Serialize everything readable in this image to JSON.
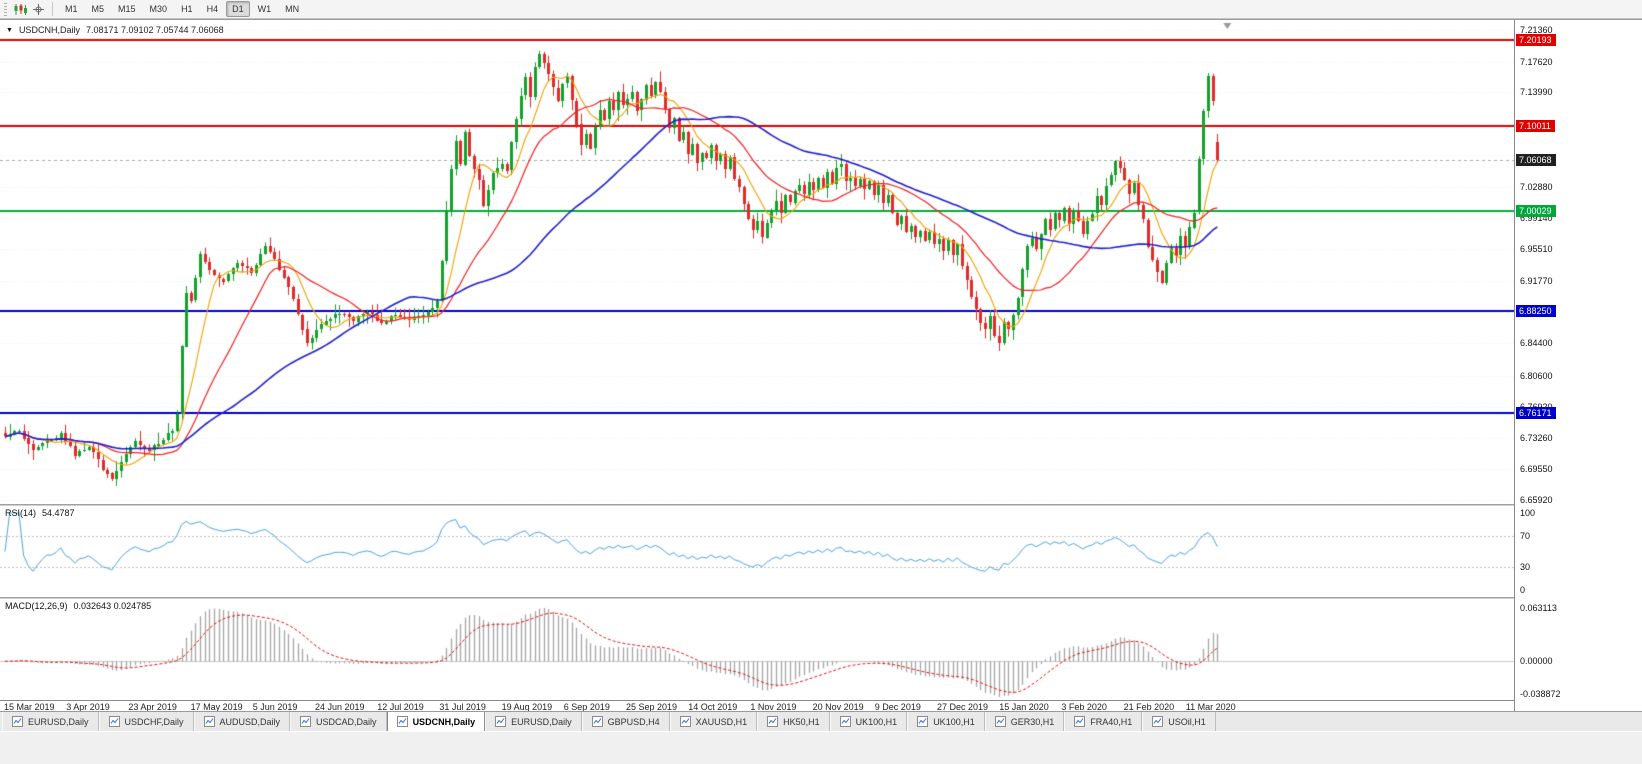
{
  "toolbar": {
    "timeframes": [
      {
        "label": "M1",
        "active": false
      },
      {
        "label": "M5",
        "active": false
      },
      {
        "label": "M15",
        "active": false
      },
      {
        "label": "M30",
        "active": false
      },
      {
        "label": "H1",
        "active": false
      },
      {
        "label": "H4",
        "active": false
      },
      {
        "label": "D1",
        "active": true
      },
      {
        "label": "W1",
        "active": false
      },
      {
        "label": "MN",
        "active": false
      }
    ]
  },
  "chart": {
    "symbol_label": "USDCNH,Daily",
    "ohlc_text": "7.08171 7.09102 7.05744 7.06068",
    "expand_glyph": "▼"
  },
  "indicators": {
    "rsi": {
      "label": "RSI(14)",
      "value": "54.4787",
      "ticks": [
        "100",
        "70",
        "30",
        "0"
      ],
      "levels": [
        70,
        30
      ],
      "color": "#4da3e0"
    },
    "macd": {
      "label": "MACD(12,26,9)",
      "values": "0.032643 0.024785",
      "ticks": [
        "0.063113",
        "0.00000",
        "-0.038872"
      ],
      "hist_color": "#a6a6a6",
      "signal_color": "#e01515"
    }
  },
  "price_axis": {
    "plain_ticks": [
      "7.21360",
      "7.17620",
      "7.13990",
      "7.02880",
      "6.99140",
      "6.95510",
      "6.91770",
      "6.84400",
      "6.80600",
      "6.76920",
      "6.73260",
      "6.69550",
      "6.65920"
    ],
    "tags": [
      {
        "value": "7.20193",
        "bg": "#e00000"
      },
      {
        "value": "7.10011",
        "bg": "#e00000"
      },
      {
        "value": "7.06068",
        "bg": "#202020"
      },
      {
        "value": "7.00029",
        "bg": "#00a83a"
      },
      {
        "value": "6.88250",
        "bg": "#0000cd"
      },
      {
        "value": "6.76171",
        "bg": "#0000cd"
      }
    ]
  },
  "dates": [
    "15 Mar 2019",
    "3 Apr 2019",
    "23 Apr 2019",
    "17 May 2019",
    "5 Jun 2019",
    "24 Jun 2019",
    "12 Jul 2019",
    "31 Jul 2019",
    "19 Aug 2019",
    "6 Sep 2019",
    "25 Sep 2019",
    "14 Oct 2019",
    "1 Nov 2019",
    "20 Nov 2019",
    "9 Dec 2019",
    "27 Dec 2019",
    "15 Jan 2020",
    "3 Feb 2020",
    "21 Feb 2020",
    "11 Mar 2020"
  ],
  "tabs": [
    {
      "label": "EURUSD,Daily",
      "active": false
    },
    {
      "label": "USDCHF,Daily",
      "active": false
    },
    {
      "label": "AUDUSD,Daily",
      "active": false
    },
    {
      "label": "USDCAD,Daily",
      "active": false
    },
    {
      "label": "USDCNH,Daily",
      "active": true
    },
    {
      "label": "EURUSD,Daily",
      "active": false
    },
    {
      "label": "GBPUSD,H4",
      "active": false
    },
    {
      "label": "XAUUSD,H1",
      "active": false
    },
    {
      "label": "HK50,H1",
      "active": false
    },
    {
      "label": "UK100,H1",
      "active": false
    },
    {
      "label": "UK100,H1",
      "active": false
    },
    {
      "label": "GER30,H1",
      "active": false
    },
    {
      "label": "FRA40,H1",
      "active": false
    },
    {
      "label": "USOil,H1",
      "active": false
    }
  ],
  "chart_data": {
    "type": "candlestick",
    "symbol": "USDCNH",
    "timeframe": "Daily",
    "title": "USDCNH,Daily",
    "ohlc_current": {
      "open": 7.08171,
      "high": 7.09102,
      "low": 7.05744,
      "close": 7.06068
    },
    "rsi_current": 54.4787,
    "macd_current": {
      "main": 0.032643,
      "signal": 0.024785
    },
    "y_range": [
      6.6545,
      7.2254
    ],
    "macd_range": [
      -0.038872,
      0.063113
    ],
    "rsi_range": [
      0,
      100
    ],
    "num_candles": 262,
    "candle_up_color": "#14a02c",
    "candle_down_color": "#e02b2b",
    "horizontal_lines": [
      {
        "price": 7.20193,
        "color": "#e00000",
        "width": 2
      },
      {
        "price": 7.10011,
        "color": "#e00000",
        "width": 2
      },
      {
        "price": 7.00029,
        "color": "#00ae3a",
        "width": 2
      },
      {
        "price": 6.8825,
        "color": "#0000cd",
        "width": 2
      },
      {
        "price": 6.76171,
        "color": "#0000cd",
        "width": 2
      }
    ],
    "grid_prices": [
      7.2136,
      7.1762,
      7.1399,
      7.1026,
      7.0663,
      7.0288,
      6.9914,
      6.9551,
      6.9177,
      6.8825,
      6.844,
      6.806,
      6.7692,
      6.7326,
      6.6955,
      6.6592
    ],
    "ma": [
      {
        "period": 8,
        "color": "#f0a000",
        "width": 1.1
      },
      {
        "period": 20,
        "color": "#ee2222",
        "width": 1.2
      },
      {
        "period": 50,
        "color": "#2020cc",
        "width": 1.6
      }
    ],
    "anchors": [
      [
        0,
        6.735
      ],
      [
        3,
        6.742
      ],
      [
        6,
        6.718
      ],
      [
        9,
        6.728
      ],
      [
        12,
        6.737
      ],
      [
        15,
        6.713
      ],
      [
        18,
        6.723
      ],
      [
        21,
        6.697
      ],
      [
        23,
        6.683
      ],
      [
        25,
        6.706
      ],
      [
        28,
        6.728
      ],
      [
        31,
        6.717
      ],
      [
        34,
        6.731
      ],
      [
        36,
        6.742
      ],
      [
        37,
        6.76
      ],
      [
        38,
        6.84
      ],
      [
        39,
        6.905
      ],
      [
        40,
        6.893
      ],
      [
        41,
        6.92
      ],
      [
        42,
        6.948
      ],
      [
        44,
        6.93
      ],
      [
        47,
        6.916
      ],
      [
        50,
        6.94
      ],
      [
        53,
        6.929
      ],
      [
        56,
        6.957
      ],
      [
        58,
        6.944
      ],
      [
        60,
        6.921
      ],
      [
        62,
        6.897
      ],
      [
        64,
        6.862
      ],
      [
        65,
        6.845
      ],
      [
        67,
        6.858
      ],
      [
        69,
        6.872
      ],
      [
        72,
        6.88
      ],
      [
        75,
        6.871
      ],
      [
        78,
        6.882
      ],
      [
        81,
        6.869
      ],
      [
        84,
        6.878
      ],
      [
        87,
        6.871
      ],
      [
        90,
        6.879
      ],
      [
        92,
        6.886
      ],
      [
        93,
        6.896
      ],
      [
        94,
        6.942
      ],
      [
        95,
        7.0
      ],
      [
        96,
        7.048
      ],
      [
        97,
        7.08
      ],
      [
        98,
        7.055
      ],
      [
        99,
        7.092
      ],
      [
        100,
        7.065
      ],
      [
        102,
        7.035
      ],
      [
        103,
        7.008
      ],
      [
        105,
        7.044
      ],
      [
        107,
        7.058
      ],
      [
        108,
        7.048
      ],
      [
        109,
        7.082
      ],
      [
        110,
        7.11
      ],
      [
        111,
        7.138
      ],
      [
        112,
        7.158
      ],
      [
        113,
        7.132
      ],
      [
        114,
        7.168
      ],
      [
        115,
        7.186
      ],
      [
        116,
        7.176
      ],
      [
        117,
        7.163
      ],
      [
        118,
        7.146
      ],
      [
        119,
        7.131
      ],
      [
        120,
        7.149
      ],
      [
        121,
        7.159
      ],
      [
        122,
        7.132
      ],
      [
        123,
        7.102
      ],
      [
        124,
        7.077
      ],
      [
        125,
        7.091
      ],
      [
        126,
        7.072
      ],
      [
        127,
        7.099
      ],
      [
        128,
        7.118
      ],
      [
        129,
        7.109
      ],
      [
        130,
        7.128
      ],
      [
        131,
        7.119
      ],
      [
        132,
        7.139
      ],
      [
        133,
        7.124
      ],
      [
        134,
        7.134
      ],
      [
        135,
        7.141
      ],
      [
        136,
        7.119
      ],
      [
        137,
        7.133
      ],
      [
        138,
        7.147
      ],
      [
        139,
        7.138
      ],
      [
        140,
        7.153
      ],
      [
        141,
        7.139
      ],
      [
        142,
        7.119
      ],
      [
        143,
        7.098
      ],
      [
        144,
        7.108
      ],
      [
        145,
        7.083
      ],
      [
        146,
        7.094
      ],
      [
        147,
        7.069
      ],
      [
        148,
        7.079
      ],
      [
        149,
        7.058
      ],
      [
        150,
        7.068
      ],
      [
        151,
        7.062
      ],
      [
        152,
        7.078
      ],
      [
        153,
        7.058
      ],
      [
        154,
        7.068
      ],
      [
        155,
        7.052
      ],
      [
        156,
        7.063
      ],
      [
        157,
        7.038
      ],
      [
        158,
        7.028
      ],
      [
        159,
        7.008
      ],
      [
        160,
        6.99
      ],
      [
        161,
        6.976
      ],
      [
        162,
        6.986
      ],
      [
        163,
        6.968
      ],
      [
        164,
        6.988
      ],
      [
        165,
        7.0
      ],
      [
        166,
        7.014
      ],
      [
        167,
        6.999
      ],
      [
        168,
        7.018
      ],
      [
        169,
        7.008
      ],
      [
        170,
        7.024
      ],
      [
        171,
        7.029
      ],
      [
        172,
        7.019
      ],
      [
        173,
        7.034
      ],
      [
        174,
        7.024
      ],
      [
        175,
        7.039
      ],
      [
        176,
        7.029
      ],
      [
        177,
        7.044
      ],
      [
        178,
        7.034
      ],
      [
        179,
        7.049
      ],
      [
        180,
        7.054
      ],
      [
        181,
        7.034
      ],
      [
        182,
        7.041
      ],
      [
        183,
        7.029
      ],
      [
        184,
        7.039
      ],
      [
        185,
        7.024
      ],
      [
        186,
        7.034
      ],
      [
        187,
        7.019
      ],
      [
        188,
        7.029
      ],
      [
        189,
        7.009
      ],
      [
        190,
        7.019
      ],
      [
        191,
        6.999
      ],
      [
        192,
        6.984
      ],
      [
        193,
        6.994
      ],
      [
        194,
        6.974
      ],
      [
        195,
        6.984
      ],
      [
        196,
        6.969
      ],
      [
        197,
        6.979
      ],
      [
        198,
        6.964
      ],
      [
        199,
        6.974
      ],
      [
        200,
        6.959
      ],
      [
        201,
        6.969
      ],
      [
        202,
        6.954
      ],
      [
        203,
        6.964
      ],
      [
        204,
        6.949
      ],
      [
        205,
        6.959
      ],
      [
        206,
        6.938
      ],
      [
        207,
        6.918
      ],
      [
        208,
        6.898
      ],
      [
        209,
        6.884
      ],
      [
        210,
        6.869
      ],
      [
        211,
        6.859
      ],
      [
        212,
        6.874
      ],
      [
        213,
        6.854
      ],
      [
        214,
        6.844
      ],
      [
        215,
        6.869
      ],
      [
        216,
        6.859
      ],
      [
        217,
        6.879
      ],
      [
        218,
        6.899
      ],
      [
        219,
        6.929
      ],
      [
        220,
        6.959
      ],
      [
        221,
        6.969
      ],
      [
        222,
        6.954
      ],
      [
        223,
        6.974
      ],
      [
        224,
        6.989
      ],
      [
        225,
        6.979
      ],
      [
        226,
        6.999
      ],
      [
        227,
        6.989
      ],
      [
        228,
        7.004
      ],
      [
        229,
        6.984
      ],
      [
        230,
        6.999
      ],
      [
        231,
        6.989
      ],
      [
        232,
        6.974
      ],
      [
        233,
        6.989
      ],
      [
        234,
        6.999
      ],
      [
        235,
        7.019
      ],
      [
        236,
        7.009
      ],
      [
        237,
        7.029
      ],
      [
        238,
        7.044
      ],
      [
        239,
        7.059
      ],
      [
        240,
        7.049
      ],
      [
        241,
        7.039
      ],
      [
        242,
        7.019
      ],
      [
        243,
        7.034
      ],
      [
        244,
        7.009
      ],
      [
        245,
        6.989
      ],
      [
        246,
        6.959
      ],
      [
        247,
        6.944
      ],
      [
        248,
        6.929
      ],
      [
        249,
        6.914
      ],
      [
        250,
        6.939
      ],
      [
        251,
        6.959
      ],
      [
        252,
        6.949
      ],
      [
        253,
        6.969
      ],
      [
        254,
        6.959
      ],
      [
        255,
        6.979
      ],
      [
        256,
        6.999
      ],
      [
        257,
        7.059
      ],
      [
        258,
        7.119
      ],
      [
        259,
        7.159
      ],
      [
        260,
        7.129
      ],
      [
        261,
        7.061
      ]
    ]
  }
}
